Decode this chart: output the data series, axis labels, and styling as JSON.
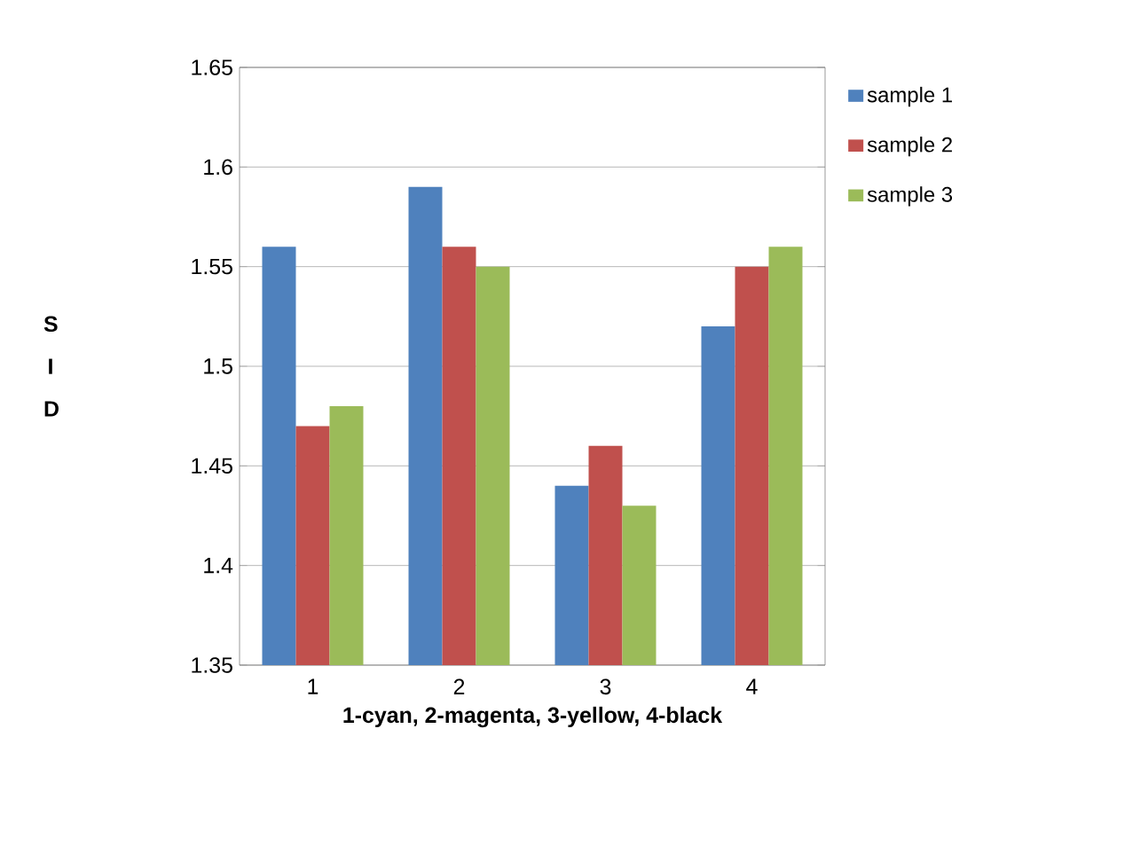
{
  "chart_data": {
    "type": "bar",
    "xlabel": "1-cyan, 2-magenta, 3-yellow, 4-black",
    "ylabel": "S I D",
    "categories": [
      "1",
      "2",
      "3",
      "4"
    ],
    "series": [
      {
        "name": "sample 1",
        "color": "#4f81bd",
        "values": [
          1.56,
          1.59,
          1.44,
          1.52
        ]
      },
      {
        "name": "sample 2",
        "color": "#c0504d",
        "values": [
          1.47,
          1.56,
          1.46,
          1.55
        ]
      },
      {
        "name": "sample 3",
        "color": "#9bbb59",
        "values": [
          1.48,
          1.55,
          1.43,
          1.56
        ]
      }
    ],
    "ylim": [
      1.35,
      1.65
    ],
    "yticks": [
      1.35,
      1.4,
      1.45,
      1.5,
      1.55,
      1.6,
      1.65
    ],
    "grid": "y",
    "legend": "right"
  }
}
